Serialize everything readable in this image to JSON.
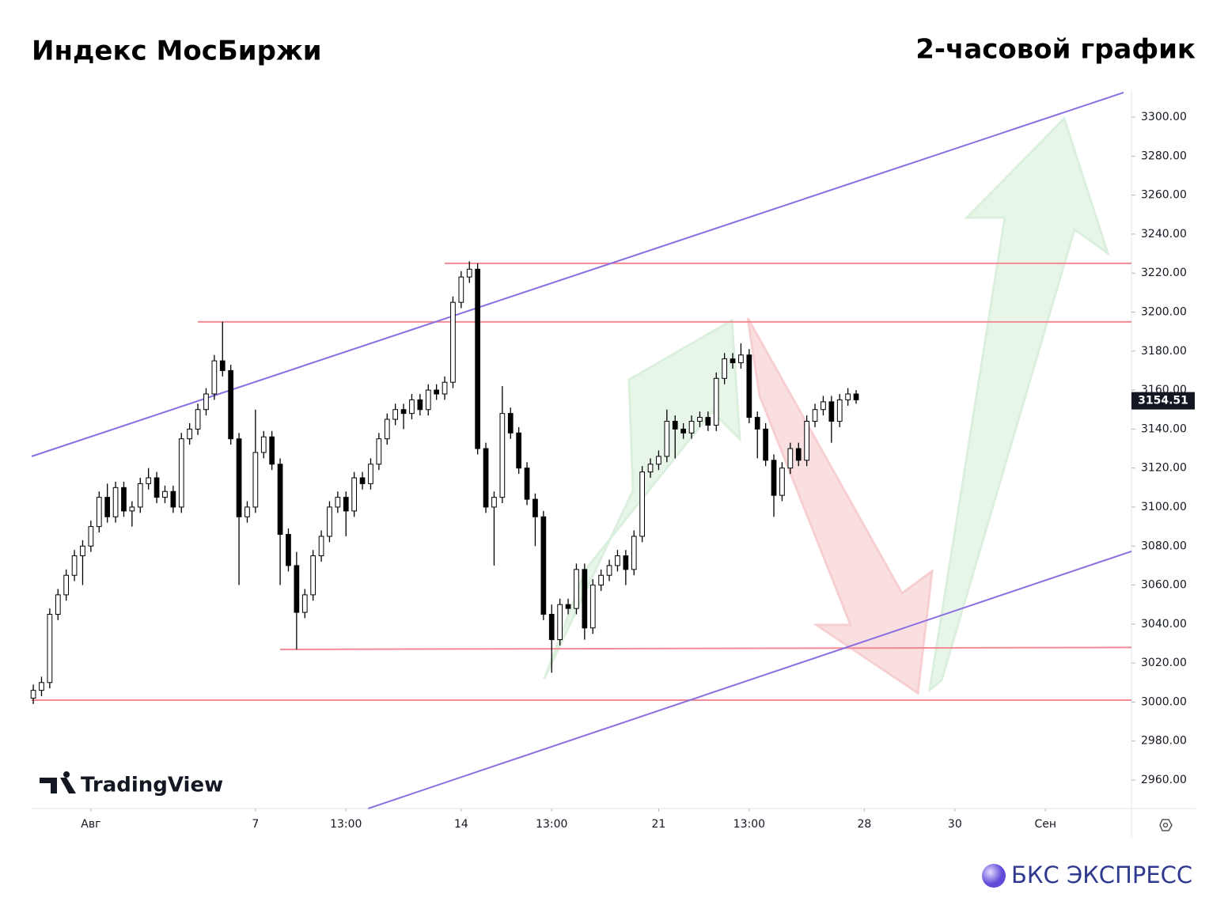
{
  "chart_data": {
    "type": "candlestick",
    "title": "Индекс МосБиржи",
    "subtitle": "2-часовой график",
    "watermark": "TradingView",
    "brand": "БКС ЭКСПРЕСС",
    "last_price": 3154.51,
    "up_color": "#ffffff",
    "down_color": "#000000",
    "outline_color": "#000000",
    "xlim": [
      -0.2,
      133.46
    ],
    "ylim": [
      2945.4,
      3313.4
    ],
    "xticks": [
      {
        "value": 7,
        "label": "Авг"
      },
      {
        "value": 27,
        "label": "7"
      },
      {
        "value": 38,
        "label": "13:00"
      },
      {
        "value": 52,
        "label": "14"
      },
      {
        "value": 63,
        "label": "13:00"
      },
      {
        "value": 76,
        "label": "21"
      },
      {
        "value": 87,
        "label": "13:00"
      },
      {
        "value": 101,
        "label": "28"
      },
      {
        "value": 112,
        "label": "30"
      },
      {
        "value": 123,
        "label": "Сен"
      }
    ],
    "yticks": [
      {
        "value": 2960,
        "label": "2960.00"
      },
      {
        "value": 2980,
        "label": "2980.00"
      },
      {
        "value": 3000,
        "label": "3000.00"
      },
      {
        "value": 3020,
        "label": "3020.00"
      },
      {
        "value": 3040,
        "label": "3040.00"
      },
      {
        "value": 3060,
        "label": "3060.00"
      },
      {
        "value": 3080,
        "label": "3080.00"
      },
      {
        "value": 3100,
        "label": "3100.00"
      },
      {
        "value": 3120,
        "label": "3120.00"
      },
      {
        "value": 3140,
        "label": "3140.00"
      },
      {
        "value": 3160,
        "label": "3160.00"
      },
      {
        "value": 3180,
        "label": "3180.00"
      },
      {
        "value": 3200,
        "label": "3200.00"
      },
      {
        "value": 3220,
        "label": "3220.00"
      },
      {
        "value": 3240,
        "label": "3240.00"
      },
      {
        "value": 3260,
        "label": "3260.00"
      },
      {
        "value": 3280,
        "label": "3280.00"
      },
      {
        "value": 3300,
        "label": "3300.00"
      }
    ],
    "lines": [
      {
        "color": "#f28b95",
        "points": [
          [
            50,
            3225
          ],
          [
            133.46,
            3225
          ]
        ]
      },
      {
        "color": "#f28b95",
        "points": [
          [
            20,
            3195
          ],
          [
            133.46,
            3195
          ]
        ]
      },
      {
        "color": "#f28b95",
        "points": [
          [
            30,
            3027
          ],
          [
            133.46,
            3028
          ]
        ]
      },
      {
        "color": "#f28b95",
        "points": [
          [
            -0.2,
            3001
          ],
          [
            133.46,
            3001
          ]
        ]
      },
      {
        "color": "#8b6fe0",
        "points": [
          [
            -0.2,
            3126
          ],
          [
            132.5,
            3312.6
          ]
        ]
      },
      {
        "color": "#8b6fe0",
        "points": [
          [
            40.7,
            2945.4
          ],
          [
            133.46,
            3077.3
          ]
        ]
      }
    ],
    "ohlc": [
      [
        3002,
        3009,
        2999,
        3006
      ],
      [
        3006,
        3013,
        3003,
        3010
      ],
      [
        3010,
        3048,
        3007,
        3045
      ],
      [
        3045,
        3058,
        3042,
        3055
      ],
      [
        3055,
        3068,
        3052,
        3065
      ],
      [
        3065,
        3078,
        3062,
        3075
      ],
      [
        3075,
        3083,
        3060,
        3080
      ],
      [
        3080,
        3093,
        3077,
        3090
      ],
      [
        3090,
        3108,
        3087,
        3105
      ],
      [
        3105,
        3112,
        3092,
        3095
      ],
      [
        3095,
        3113,
        3092,
        3110
      ],
      [
        3110,
        3113,
        3095,
        3098
      ],
      [
        3098,
        3103,
        3090,
        3100
      ],
      [
        3100,
        3115,
        3097,
        3112
      ],
      [
        3112,
        3120,
        3109,
        3115
      ],
      [
        3115,
        3118,
        3102,
        3105
      ],
      [
        3105,
        3111,
        3102,
        3108
      ],
      [
        3108,
        3111,
        3097,
        3100
      ],
      [
        3100,
        3138,
        3097,
        3135
      ],
      [
        3135,
        3143,
        3132,
        3140
      ],
      [
        3140,
        3153,
        3137,
        3150
      ],
      [
        3150,
        3161,
        3147,
        3158
      ],
      [
        3158,
        3178,
        3155,
        3175
      ],
      [
        3175,
        3195,
        3167,
        3170
      ],
      [
        3170,
        3173,
        3132,
        3135
      ],
      [
        3135,
        3138,
        3060,
        3095
      ],
      [
        3095,
        3103,
        3092,
        3100
      ],
      [
        3100,
        3150,
        3097,
        3128
      ],
      [
        3128,
        3139,
        3125,
        3136
      ],
      [
        3136,
        3139,
        3119,
        3122
      ],
      [
        3122,
        3125,
        3060,
        3086
      ],
      [
        3086,
        3089,
        3067,
        3070
      ],
      [
        3070,
        3077,
        3027,
        3046
      ],
      [
        3046,
        3058,
        3043,
        3055
      ],
      [
        3055,
        3078,
        3052,
        3075
      ],
      [
        3075,
        3088,
        3072,
        3085
      ],
      [
        3085,
        3103,
        3082,
        3100
      ],
      [
        3100,
        3108,
        3097,
        3105
      ],
      [
        3105,
        3108,
        3085,
        3098
      ],
      [
        3098,
        3118,
        3095,
        3115
      ],
      [
        3115,
        3118,
        3109,
        3112
      ],
      [
        3112,
        3125,
        3109,
        3122
      ],
      [
        3122,
        3138,
        3119,
        3135
      ],
      [
        3135,
        3148,
        3132,
        3145
      ],
      [
        3145,
        3153,
        3142,
        3150
      ],
      [
        3150,
        3153,
        3140,
        3148
      ],
      [
        3148,
        3158,
        3145,
        3155
      ],
      [
        3155,
        3158,
        3147,
        3150
      ],
      [
        3150,
        3163,
        3147,
        3160
      ],
      [
        3160,
        3163,
        3155,
        3158
      ],
      [
        3158,
        3167,
        3155,
        3164
      ],
      [
        3164,
        3208,
        3161,
        3205
      ],
      [
        3205,
        3221,
        3202,
        3218
      ],
      [
        3218,
        3226,
        3215,
        3222
      ],
      [
        3222,
        3225,
        3127,
        3130
      ],
      [
        3130,
        3133,
        3097,
        3100
      ],
      [
        3100,
        3108,
        3070,
        3105
      ],
      [
        3105,
        3162,
        3102,
        3148
      ],
      [
        3148,
        3151,
        3135,
        3138
      ],
      [
        3138,
        3141,
        3117,
        3120
      ],
      [
        3120,
        3123,
        3101,
        3104
      ],
      [
        3104,
        3107,
        3080,
        3095
      ],
      [
        3095,
        3098,
        3042,
        3045
      ],
      [
        3045,
        3050,
        3015,
        3032
      ],
      [
        3032,
        3053,
        3029,
        3050
      ],
      [
        3050,
        3053,
        3045,
        3048
      ],
      [
        3048,
        3071,
        3045,
        3068
      ],
      [
        3068,
        3071,
        3032,
        3038
      ],
      [
        3038,
        3063,
        3035,
        3060
      ],
      [
        3060,
        3068,
        3057,
        3065
      ],
      [
        3065,
        3073,
        3062,
        3070
      ],
      [
        3070,
        3078,
        3067,
        3075
      ],
      [
        3075,
        3078,
        3060,
        3068
      ],
      [
        3068,
        3088,
        3065,
        3085
      ],
      [
        3085,
        3121,
        3082,
        3118
      ],
      [
        3118,
        3125,
        3115,
        3122
      ],
      [
        3122,
        3129,
        3119,
        3126
      ],
      [
        3126,
        3150,
        3123,
        3144
      ],
      [
        3144,
        3147,
        3125,
        3140
      ],
      [
        3140,
        3143,
        3135,
        3138
      ],
      [
        3138,
        3147,
        3135,
        3144
      ],
      [
        3144,
        3149,
        3141,
        3146
      ],
      [
        3146,
        3149,
        3139,
        3142
      ],
      [
        3142,
        3169,
        3139,
        3166
      ],
      [
        3166,
        3179,
        3163,
        3176
      ],
      [
        3176,
        3179,
        3171,
        3174
      ],
      [
        3174,
        3184,
        3171,
        3178
      ],
      [
        3178,
        3181,
        3143,
        3146
      ],
      [
        3146,
        3149,
        3125,
        3140
      ],
      [
        3140,
        3143,
        3121,
        3124
      ],
      [
        3124,
        3127,
        3095,
        3106
      ],
      [
        3106,
        3123,
        3103,
        3120
      ],
      [
        3120,
        3133,
        3117,
        3130
      ],
      [
        3130,
        3133,
        3121,
        3124
      ],
      [
        3124,
        3147,
        3121,
        3144
      ],
      [
        3144,
        3153,
        3141,
        3150
      ],
      [
        3150,
        3157,
        3147,
        3154
      ],
      [
        3154,
        3157,
        3133,
        3144
      ],
      [
        3144,
        3158,
        3141,
        3155
      ],
      [
        3155,
        3161,
        3152,
        3158
      ],
      [
        3158,
        3160,
        3153,
        3155
      ]
    ]
  }
}
